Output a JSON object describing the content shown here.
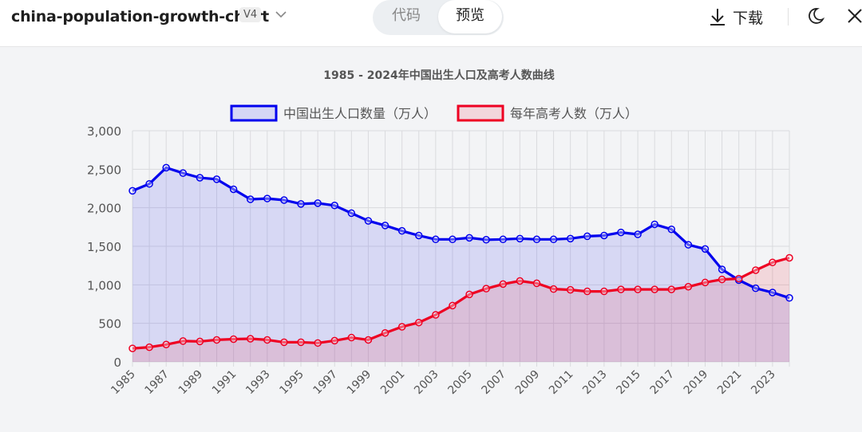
{
  "app": {
    "title": "china-population-growth-chart",
    "version": "V4"
  },
  "view_toggle": {
    "code_label": "代码",
    "preview_label": "预览",
    "active": "preview"
  },
  "actions": {
    "download_label": "下载",
    "download_icon": "download-icon",
    "theme_icon": "moon-icon",
    "close_icon": "close-icon"
  },
  "colors": {
    "series_birth": "#0000ee",
    "series_exam": "#ee0022",
    "background": "#f3f4f6"
  },
  "chart_data": {
    "type": "line",
    "title": "1985 - 2024年中国出生人口及高考人数曲线",
    "xlabel": "",
    "ylabel": "",
    "ylim": [
      0,
      3000
    ],
    "yticks": [
      "0",
      "500",
      "1,000",
      "1,500",
      "2,000",
      "2,500",
      "3,000"
    ],
    "ytick_values": [
      0,
      500,
      1000,
      1500,
      2000,
      2500,
      3000
    ],
    "x": [
      1985,
      1986,
      1987,
      1988,
      1989,
      1990,
      1991,
      1992,
      1993,
      1994,
      1995,
      1996,
      1997,
      1998,
      1999,
      2000,
      2001,
      2002,
      2003,
      2004,
      2005,
      2006,
      2007,
      2008,
      2009,
      2010,
      2011,
      2012,
      2013,
      2014,
      2015,
      2016,
      2017,
      2018,
      2019,
      2020,
      2021,
      2022,
      2023,
      2024
    ],
    "xtick_labels": [
      "1985",
      "1987",
      "1989",
      "1991",
      "1993",
      "1995",
      "1997",
      "1999",
      "2001",
      "2003",
      "2005",
      "2007",
      "2009",
      "2011",
      "2013",
      "2015",
      "2017",
      "2019",
      "2021",
      "2023"
    ],
    "grid": true,
    "legend_position": "top-center",
    "filled_area": true,
    "series": [
      {
        "name": "中国出生人口数量（万人）",
        "values": [
          2220,
          2310,
          2520,
          2450,
          2390,
          2370,
          2240,
          2110,
          2120,
          2100,
          2050,
          2060,
          2030,
          1930,
          1830,
          1770,
          1700,
          1640,
          1590,
          1590,
          1610,
          1585,
          1590,
          1600,
          1590,
          1590,
          1600,
          1630,
          1640,
          1680,
          1655,
          1785,
          1720,
          1520,
          1465,
          1200,
          1060,
          955,
          900,
          830
        ],
        "color": "#0000ee"
      },
      {
        "name": "每年高考人数（万人）",
        "values": [
          175,
          190,
          225,
          270,
          265,
          285,
          295,
          300,
          285,
          255,
          255,
          245,
          275,
          315,
          285,
          375,
          455,
          510,
          610,
          730,
          875,
          950,
          1010,
          1050,
          1020,
          945,
          935,
          915,
          915,
          940,
          940,
          940,
          940,
          975,
          1030,
          1070,
          1080,
          1190,
          1290,
          1350
        ],
        "color": "#ee0022"
      }
    ]
  }
}
